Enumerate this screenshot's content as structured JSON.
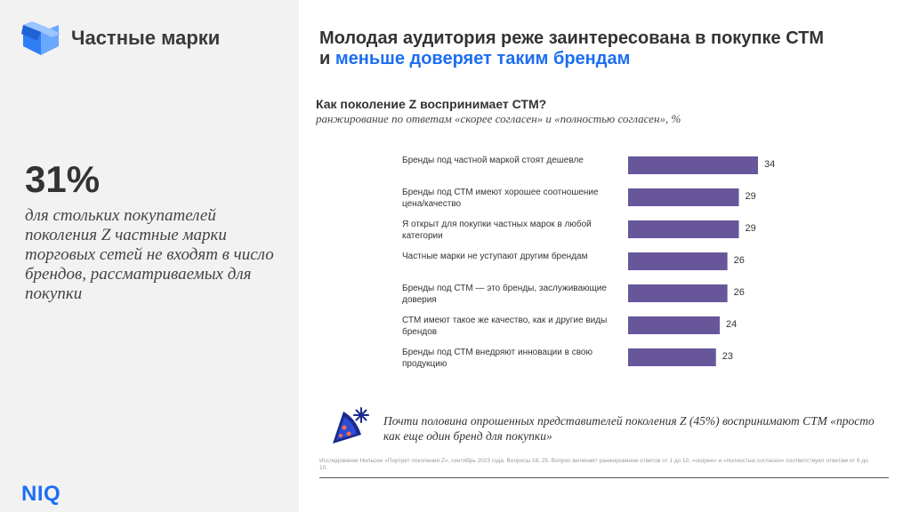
{
  "left_panel": {
    "section_title": "Частные марки",
    "big_stat": "31%",
    "stat_description": "для стольких покупателей поколения Z частные марки торговых сетей не входят в число брендов, рассматриваемых для покупки",
    "logo_text": "NIQ"
  },
  "headline": {
    "line1": "Молодая аудитория реже заинтересована в покупке СТМ",
    "line2_prefix": "и ",
    "line2_accent": "меньше доверяет таким брендам"
  },
  "chart_data": {
    "type": "bar",
    "orientation": "horizontal",
    "title": "Как поколение Z воспринимает СТМ?",
    "subtitle": "ранжирование по ответам «скорее согласен» и «полностью согласен», %",
    "categories": [
      "Бренды под частной маркой стоят дешевле",
      "Бренды под СТМ имеют хорошее соотношение цена/качество",
      "Я открыт для покупки частных марок в любой категории",
      "Частные марки не уступают другим брендам",
      "Бренды под СТМ — это бренды, заслуживающие доверия",
      "СТМ имеют такое же качество, как и другие виды брендов",
      "Бренды под СТМ внедряют инновации в свою продукцию"
    ],
    "values": [
      34,
      29,
      29,
      26,
      26,
      24,
      23
    ],
    "value_labels": [
      "34",
      "29",
      "29",
      "26",
      "26",
      "24",
      "23"
    ],
    "bar_color": "#67579a"
  },
  "note": {
    "text": "Почти половина опрошенных представителей поколения Z (45%) воспринимают СТМ «просто как еще один бренд для покупки»",
    "icon": "pizza-snowflake-icon"
  },
  "source": "Исследование Нильсен «Портрет поколения Z», сентябрь 2023 года. Вопросы 18, 25. Вопрос включает ранжирование ответов от 1 до 10, «скорее» и «полностью согласен» соответствуют ответам от 8 до 10.",
  "colors": {
    "accent": "#1c6ef2",
    "panel_bg": "#f2f2f2",
    "cube_blue": "#2f7ef5",
    "icon_navy": "#1a2a8a"
  }
}
